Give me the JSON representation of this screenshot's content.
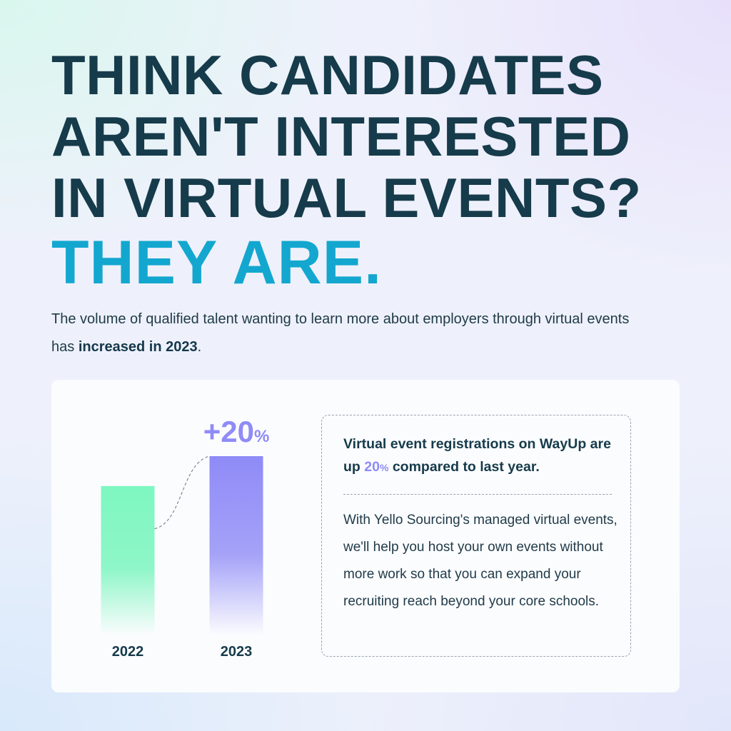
{
  "headline": {
    "lines": [
      "THINK CANDIDATES",
      "AREN'T INTERESTED",
      "IN VIRTUAL EVENTS?"
    ],
    "answer": "THEY ARE."
  },
  "intro": {
    "text_before": "The volume of qualified talent wanting to learn more about employers through virtual events has ",
    "emphasis": "increased in 2023",
    "text_after": "."
  },
  "info": {
    "title_before": "Virtual event registrations on WayUp are up ",
    "title_highlight": "20",
    "title_highlight_unit": "%",
    "title_after": " compared to last year.",
    "body": "With Yello Sourcing's managed virtual events, we'll help you host your own events without more work so that you can expand your recruiting reach beyond your core schools."
  },
  "chart_data": {
    "type": "bar",
    "categories": [
      "2022",
      "2023"
    ],
    "values": [
      100,
      120
    ],
    "ylim": [
      0,
      120
    ],
    "annotation": {
      "value": "+20",
      "unit": "%",
      "target": "2023"
    },
    "colors": [
      "#7ef7c0",
      "#8f8bf7"
    ],
    "grid": false,
    "legend": "none"
  }
}
